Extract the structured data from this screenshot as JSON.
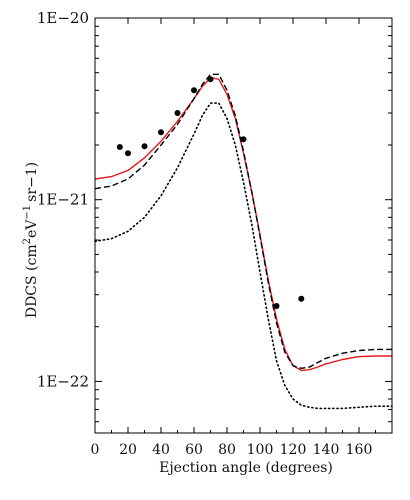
{
  "chart_data": {
    "type": "line",
    "xlabel": "Ejection angle (degrees)",
    "ylabel_parts": {
      "prefix": "DDCS (cm",
      "exp1": "2",
      "mid": "eV",
      "exp2": "−1",
      "suffix": "sr−1)"
    },
    "xlim": [
      0,
      180
    ],
    "ylim": [
      5.2e-23,
      1e-20
    ],
    "yscale": "log",
    "x_ticks": [
      0,
      20,
      40,
      60,
      80,
      100,
      120,
      140,
      160
    ],
    "x_tick_labels": [
      "0",
      "20",
      "40",
      "60",
      "80",
      "100",
      "120",
      "140",
      "160"
    ],
    "y_ticks": [
      1e-22,
      1e-21,
      1e-20
    ],
    "y_tick_labels": [
      "1E−22",
      "1E−21",
      "1E−20"
    ],
    "series": [
      {
        "style": "solid-red",
        "color": "#e31a1c",
        "x": [
          0,
          10,
          20,
          30,
          40,
          50,
          60,
          65,
          70,
          75,
          80,
          85,
          90,
          95,
          100,
          105,
          110,
          115,
          120,
          125,
          130,
          135,
          140,
          150,
          160,
          170,
          180
        ],
        "y": [
          1.3e-21,
          1.34e-21,
          1.45e-21,
          1.7e-21,
          2.1e-21,
          2.7e-21,
          3.6e-21,
          4.2e-21,
          4.7e-21,
          4.6e-21,
          3.8e-21,
          2.8e-21,
          1.8e-21,
          1.1e-21,
          6.4e-22,
          3.6e-22,
          2.2e-22,
          1.5e-22,
          1.22e-22,
          1.15e-22,
          1.16e-22,
          1.2e-22,
          1.25e-22,
          1.32e-22,
          1.37e-22,
          1.38e-22,
          1.38e-22
        ]
      },
      {
        "style": "dashed-black",
        "color": "#000000",
        "x": [
          0,
          10,
          20,
          30,
          40,
          50,
          60,
          65,
          70,
          75,
          80,
          85,
          90,
          95,
          100,
          105,
          110,
          115,
          120,
          125,
          130,
          135,
          140,
          150,
          160,
          170,
          180
        ],
        "y": [
          1.15e-21,
          1.19e-21,
          1.3e-21,
          1.55e-21,
          2e-21,
          2.6e-21,
          3.6e-21,
          4.3e-21,
          4.9e-21,
          4.9e-21,
          4e-21,
          2.9e-21,
          1.85e-21,
          1.1e-21,
          6.3e-22,
          3.5e-22,
          2.1e-22,
          1.45e-22,
          1.22e-22,
          1.18e-22,
          1.2e-22,
          1.27e-22,
          1.34e-22,
          1.43e-22,
          1.48e-22,
          1.5e-22,
          1.5e-22
        ]
      },
      {
        "style": "dotted-black",
        "color": "#000000",
        "x": [
          0,
          10,
          20,
          30,
          40,
          50,
          60,
          65,
          70,
          75,
          80,
          85,
          90,
          95,
          100,
          105,
          110,
          115,
          120,
          125,
          130,
          135,
          140,
          150,
          160,
          170,
          180
        ],
        "y": [
          5.9e-22,
          6.1e-22,
          6.7e-22,
          8e-22,
          1.05e-21,
          1.5e-21,
          2.3e-21,
          2.9e-21,
          3.4e-21,
          3.4e-21,
          2.8e-21,
          2e-21,
          1.25e-21,
          7.3e-22,
          4e-22,
          2.2e-22,
          1.3e-22,
          9.5e-23,
          8e-23,
          7.4e-23,
          7.2e-23,
          7.1e-23,
          7.1e-23,
          7.1e-23,
          7.2e-23,
          7.3e-23,
          7.3e-23
        ]
      }
    ],
    "experiment_points": {
      "x": [
        15,
        20,
        30,
        40,
        50,
        60,
        70,
        90,
        110,
        125
      ],
      "y": [
        1.95e-21,
        1.8e-21,
        1.97e-21,
        2.35e-21,
        3e-21,
        4e-21,
        4.6e-21,
        2.15e-21,
        2.6e-22,
        2.85e-22
      ]
    },
    "grid": false
  }
}
